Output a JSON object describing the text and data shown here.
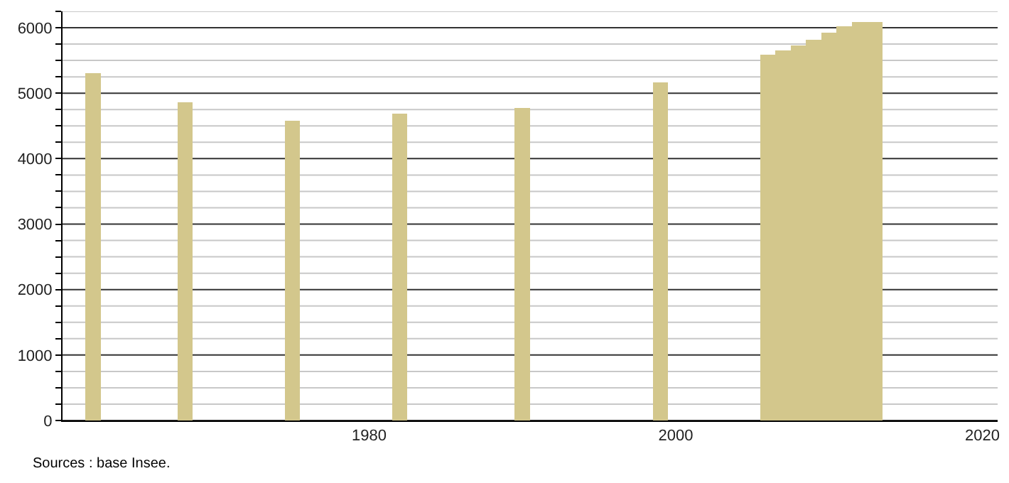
{
  "chart_data": {
    "type": "bar",
    "x": [
      1962,
      1968,
      1975,
      1982,
      1990,
      1999,
      2006,
      2007,
      2008,
      2009,
      2010,
      2011,
      2012,
      2013
    ],
    "values": [
      5310,
      4860,
      4580,
      4690,
      4770,
      5160,
      5590,
      5650,
      5730,
      5820,
      5920,
      6020,
      6090,
      6090
    ],
    "color": "#d3c78c",
    "xlim": [
      1960,
      2021
    ],
    "xticks": [
      1980,
      2000,
      2020
    ],
    "ylim": [
      0,
      6250
    ],
    "yticks": [
      0,
      {
        "value": 250,
        "label": null
      },
      {
        "value": 500,
        "label": null
      },
      {
        "value": 750,
        "label": null
      },
      1000,
      {
        "value": 1250,
        "label": null
      },
      {
        "value": 1500,
        "label": null
      },
      {
        "value": 1750,
        "label": null
      },
      2000,
      {
        "value": 2250,
        "label": null
      },
      {
        "value": 2500,
        "label": null
      },
      {
        "value": 2750,
        "label": null
      },
      3000,
      {
        "value": 3250,
        "label": null
      },
      {
        "value": 3500,
        "label": null
      },
      {
        "value": 3750,
        "label": null
      },
      4000,
      {
        "value": 4250,
        "label": null
      },
      {
        "value": 4500,
        "label": null
      },
      {
        "value": 4750,
        "label": null
      },
      5000,
      {
        "value": 5250,
        "label": null
      },
      {
        "value": 5500,
        "label": null
      },
      {
        "value": 5750,
        "label": null
      },
      6000,
      {
        "value": 6250,
        "label": null
      }
    ],
    "grid": true,
    "annotations": [
      "Sources : base Insee."
    ]
  }
}
